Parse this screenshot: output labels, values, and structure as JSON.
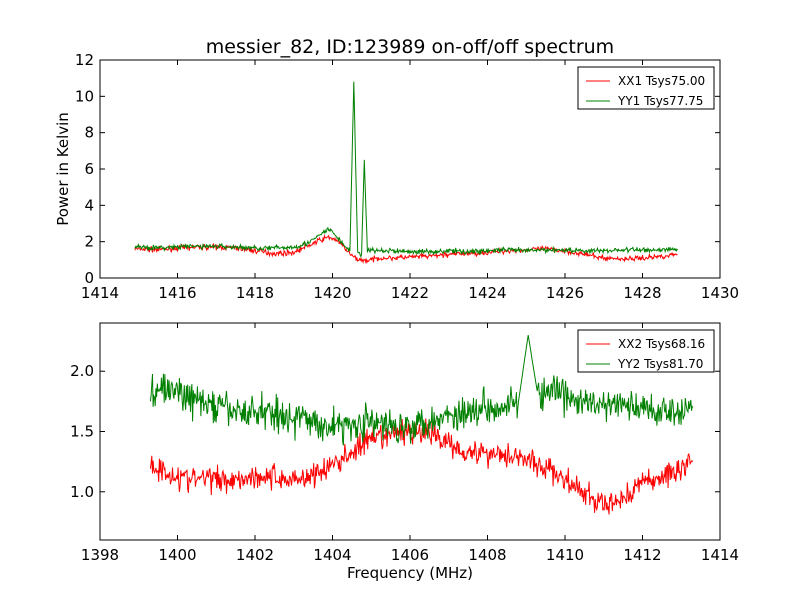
{
  "figure": {
    "title": "messier_82, ID:123989 on-off/off spectrum"
  },
  "chart_data": [
    {
      "type": "line",
      "title": "messier_82, ID:123989 on-off/off spectrum",
      "xlabel": "",
      "ylabel": "Power in Kelvin",
      "xlim": [
        1414,
        1430
      ],
      "ylim": [
        0,
        12
      ],
      "xticks": [
        1414,
        1416,
        1418,
        1420,
        1422,
        1424,
        1426,
        1428,
        1430
      ],
      "yticks": [
        0,
        2,
        4,
        6,
        8,
        10,
        12
      ],
      "xtick_labels": [
        "1414",
        "1416",
        "1418",
        "1420",
        "1422",
        "1424",
        "1426",
        "1428",
        "1430"
      ],
      "ytick_labels": [
        "0",
        "2",
        "4",
        "6",
        "8",
        "10",
        "12"
      ],
      "grid": false,
      "legend_position": "top-right",
      "series": [
        {
          "name": "XX1 Tsys75.00",
          "color": "#ff0000",
          "x": [
            1414.9,
            1415.5,
            1416.0,
            1416.5,
            1417.0,
            1417.5,
            1418.0,
            1418.5,
            1419.0,
            1419.4,
            1419.7,
            1419.9,
            1420.1,
            1420.3,
            1420.5,
            1420.7,
            1420.9,
            1421.2,
            1421.5,
            1422.0,
            1422.5,
            1423.0,
            1423.5,
            1424.0,
            1424.5,
            1425.0,
            1425.5,
            1426.0,
            1426.5,
            1427.0,
            1427.5,
            1428.0,
            1428.5,
            1428.9
          ],
          "y": [
            1.6,
            1.55,
            1.65,
            1.7,
            1.7,
            1.65,
            1.5,
            1.35,
            1.4,
            1.8,
            2.1,
            2.25,
            2.1,
            1.7,
            1.2,
            1.0,
            0.95,
            1.1,
            1.1,
            1.15,
            1.2,
            1.3,
            1.35,
            1.4,
            1.5,
            1.55,
            1.6,
            1.5,
            1.3,
            1.1,
            1.05,
            1.1,
            1.2,
            1.3
          ]
        },
        {
          "name": "YY1 Tsys77.75",
          "color": "#008000",
          "x": [
            1414.9,
            1415.5,
            1416.0,
            1416.5,
            1417.0,
            1417.5,
            1418.0,
            1418.5,
            1419.0,
            1419.4,
            1419.7,
            1419.9,
            1420.1,
            1420.3,
            1420.45,
            1420.55,
            1420.65,
            1420.75,
            1420.82,
            1420.9,
            1421.2,
            1421.5,
            1422.0,
            1422.5,
            1423.0,
            1423.5,
            1424.0,
            1424.5,
            1425.0,
            1425.5,
            1426.0,
            1426.5,
            1427.0,
            1427.5,
            1428.0,
            1428.5,
            1428.9
          ],
          "y": [
            1.75,
            1.65,
            1.7,
            1.75,
            1.75,
            1.7,
            1.65,
            1.65,
            1.7,
            1.95,
            2.4,
            2.7,
            2.3,
            1.8,
            1.5,
            10.8,
            1.4,
            1.3,
            6.5,
            1.5,
            1.5,
            1.5,
            1.45,
            1.45,
            1.5,
            1.45,
            1.5,
            1.55,
            1.5,
            1.55,
            1.55,
            1.5,
            1.5,
            1.55,
            1.55,
            1.55,
            1.6
          ]
        }
      ]
    },
    {
      "type": "line",
      "title": "",
      "xlabel": "Frequency (MHz)",
      "ylabel": "",
      "xlim": [
        1398,
        1414
      ],
      "ylim": [
        0.6,
        2.4
      ],
      "xticks": [
        1398,
        1400,
        1402,
        1404,
        1406,
        1408,
        1410,
        1412,
        1414
      ],
      "yticks": [
        1.0,
        1.5,
        2.0
      ],
      "xtick_labels": [
        "1398",
        "1400",
        "1402",
        "1404",
        "1406",
        "1408",
        "1410",
        "1412",
        "1414"
      ],
      "ytick_labels": [
        "1.0",
        "1.5",
        "2.0"
      ],
      "grid": false,
      "legend_position": "top-right",
      "series": [
        {
          "name": "XX2 Tsys68.16",
          "color": "#ff0000",
          "x": [
            1399.3,
            1399.8,
            1400.3,
            1400.8,
            1401.3,
            1401.8,
            1402.3,
            1402.8,
            1403.3,
            1403.8,
            1404.3,
            1404.8,
            1405.3,
            1405.8,
            1406.3,
            1406.8,
            1407.3,
            1407.8,
            1408.3,
            1408.8,
            1409.3,
            1409.8,
            1410.3,
            1410.8,
            1411.1,
            1411.5,
            1412.0,
            1412.5,
            1413.0,
            1413.3
          ],
          "y": [
            1.22,
            1.15,
            1.1,
            1.12,
            1.1,
            1.12,
            1.13,
            1.1,
            1.12,
            1.18,
            1.28,
            1.4,
            1.45,
            1.5,
            1.5,
            1.45,
            1.35,
            1.32,
            1.32,
            1.3,
            1.22,
            1.15,
            1.02,
            0.92,
            0.88,
            0.95,
            1.08,
            1.12,
            1.2,
            1.25
          ]
        },
        {
          "name": "YY2 Tsys81.70",
          "color": "#008000",
          "x": [
            1399.3,
            1399.8,
            1400.3,
            1400.8,
            1401.3,
            1401.8,
            1402.3,
            1402.8,
            1403.3,
            1403.8,
            1404.3,
            1404.8,
            1405.3,
            1405.8,
            1406.3,
            1406.8,
            1407.3,
            1407.8,
            1408.3,
            1408.8,
            1409.05,
            1409.3,
            1409.8,
            1410.3,
            1410.8,
            1411.3,
            1411.8,
            1412.3,
            1412.8,
            1413.3
          ],
          "y": [
            1.85,
            1.85,
            1.78,
            1.72,
            1.68,
            1.65,
            1.68,
            1.62,
            1.6,
            1.55,
            1.55,
            1.58,
            1.55,
            1.55,
            1.58,
            1.62,
            1.65,
            1.7,
            1.72,
            1.75,
            2.3,
            1.8,
            1.82,
            1.75,
            1.72,
            1.72,
            1.7,
            1.68,
            1.68,
            1.7
          ]
        }
      ]
    }
  ]
}
